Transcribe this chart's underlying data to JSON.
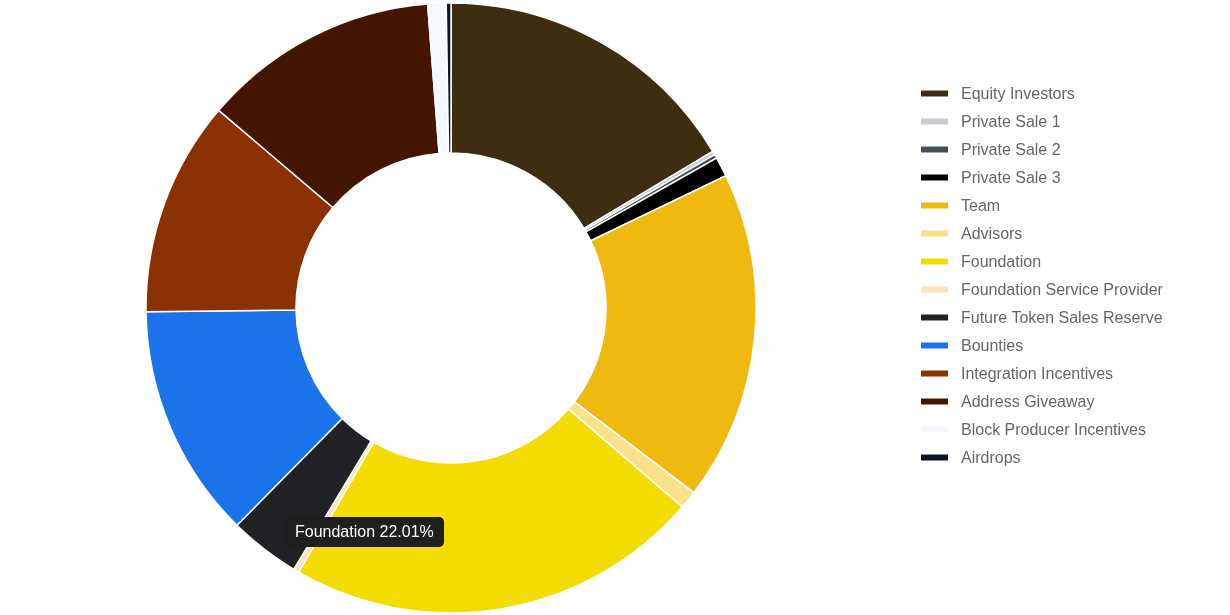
{
  "chart_data": {
    "type": "donut",
    "categories": [
      "Equity Investors",
      "Private Sale 1",
      "Private Sale 2",
      "Private Sale 3",
      "Team",
      "Advisors",
      "Foundation",
      "Foundation Service Provider",
      "Future Token Sales Reserve",
      "Bounties",
      "Integration Incentives",
      "Address Giveaway",
      "Block Producer Incentives",
      "Airdrops"
    ],
    "values": [
      16.42,
      0.2,
      0.2,
      1.04,
      17.49,
      0.96,
      22.01,
      0.3,
      3.76,
      12.42,
      11.42,
      12.56,
      0.97,
      0.25
    ],
    "colors": [
      "#3d2e12",
      "#c9ccd0",
      "#454f5a",
      "#000000",
      "#f0b90f",
      "#fbe18a",
      "#f3dc00",
      "#ffe3b8",
      "#202226",
      "#1a73e8",
      "#8b3103",
      "#441602",
      "#f4f8fc",
      "#0c1428"
    ],
    "legend": "right",
    "annotations": [
      "Foundation 22.01%"
    ]
  }
}
